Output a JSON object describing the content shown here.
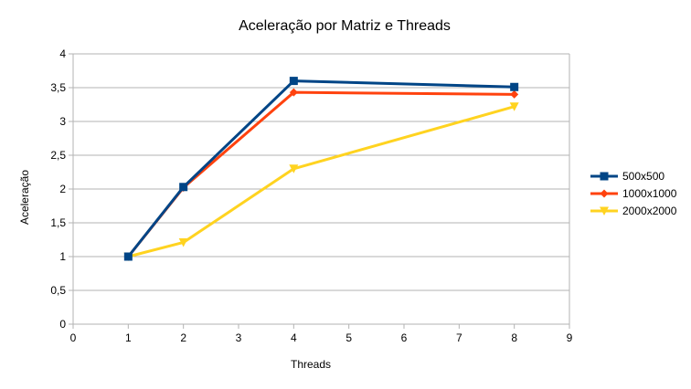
{
  "chart_data": {
    "type": "line",
    "title": "Aceleração por Matriz e Threads",
    "xlabel": "Threads",
    "ylabel": "Aceleração",
    "xlim": [
      0,
      9
    ],
    "ylim": [
      0,
      4
    ],
    "x_ticks": [
      "0",
      "1",
      "2",
      "3",
      "4",
      "5",
      "6",
      "7",
      "8",
      "9"
    ],
    "y_ticks": [
      "0",
      "0,5",
      "1",
      "1,5",
      "2",
      "2,5",
      "3",
      "3,5",
      "4"
    ],
    "grid": "horizontal",
    "legend_position": "right",
    "series": [
      {
        "name": "500x500",
        "color": "#004586",
        "marker": "square",
        "x": [
          1,
          2,
          4,
          8
        ],
        "y": [
          1.0,
          2.03,
          3.6,
          3.51
        ]
      },
      {
        "name": "1000x1000",
        "color": "#ff420e",
        "marker": "diamond",
        "x": [
          1,
          2,
          4,
          8
        ],
        "y": [
          1.0,
          2.02,
          3.43,
          3.4
        ]
      },
      {
        "name": "2000x2000",
        "color": "#ffd320",
        "marker": "triangle-down",
        "x": [
          1,
          2,
          4,
          8
        ],
        "y": [
          1.0,
          1.21,
          2.3,
          3.22
        ]
      }
    ]
  }
}
